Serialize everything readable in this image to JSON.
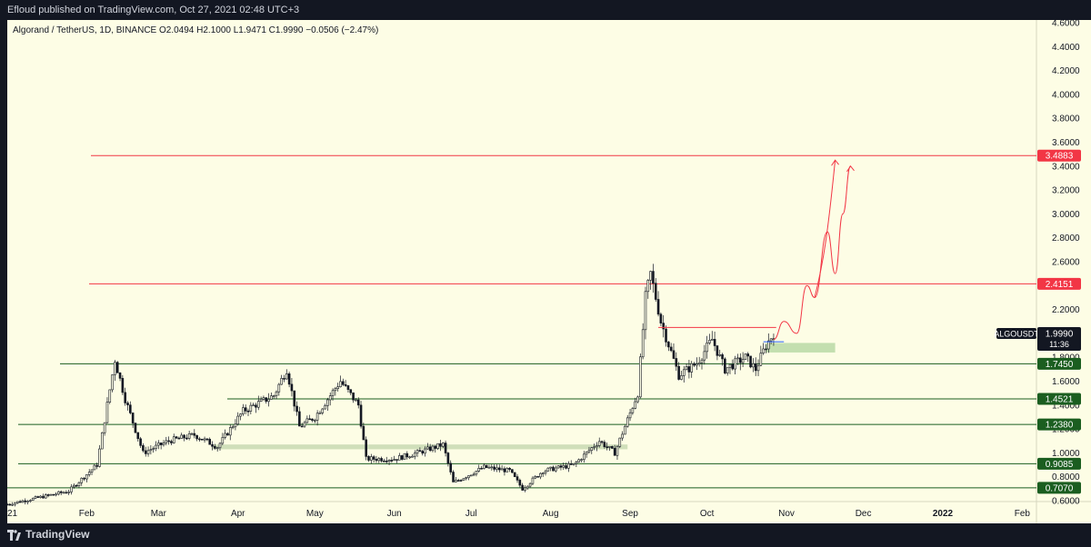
{
  "header": {
    "published": "Efloud published on TradingView.com, Oct 27, 2021 02:48 UTC+3"
  },
  "footer": {
    "brand": "TradingView"
  },
  "chart_data": {
    "type": "candlestick",
    "title": "Algorand / TetherUS, 1D, BINANCE",
    "ohlc_label": "O2.0494 H2.1000 L1.9471 C1.9990 −0.0506 (−2.47%)",
    "symbol": "ALGOUSDT",
    "last_price": "1.9990",
    "countdown": "11:36",
    "ylim": [
      0.55,
      4.7
    ],
    "y_ticks": [
      "0.6000",
      "0.8000",
      "1.0000",
      "1.2000",
      "1.4000",
      "1.6000",
      "1.8000",
      "2.0000",
      "2.2000",
      "2.4000",
      "2.6000",
      "2.8000",
      "3.0000",
      "3.2000",
      "3.4000",
      "3.6000",
      "3.8000",
      "4.0000",
      "4.2000",
      "4.4000",
      "4.6000"
    ],
    "x_ticks": [
      "21",
      "Feb",
      "Mar",
      "Apr",
      "May",
      "Jun",
      "Jul",
      "Aug",
      "Sep",
      "Oct",
      "Nov",
      "Dec",
      "2022",
      "Feb"
    ],
    "levels": [
      {
        "price": 3.4883,
        "label": "3.4883",
        "color": "#f23645"
      },
      {
        "price": 2.4151,
        "label": "2.4151",
        "color": "#f23645"
      },
      {
        "price": 1.745,
        "label": "1.7450",
        "color": "#1b5e20"
      },
      {
        "price": 1.4521,
        "label": "1.4521",
        "color": "#1b5e20"
      },
      {
        "price": 1.238,
        "label": "1.2380",
        "color": "#1b5e20"
      },
      {
        "price": 0.9085,
        "label": "0.9085",
        "color": "#1b5e20"
      },
      {
        "price": 0.707,
        "label": "0.7070",
        "color": "#1b5e20"
      }
    ],
    "zones": [
      {
        "from": "2021-03-22",
        "to": "2021-08-31",
        "low": 1.03,
        "high": 1.07,
        "color": "#c8d9b3"
      },
      {
        "from": "2021-10-24",
        "to": "2021-11-20",
        "low": 1.84,
        "high": 1.92,
        "color": "#b9d9a6"
      }
    ],
    "series": [
      {
        "name": "ALGOUSDT",
        "price_path": [
          {
            "date": "2021-01-01",
            "price": 0.57
          },
          {
            "date": "2021-01-25",
            "price": 0.68
          },
          {
            "date": "2021-02-05",
            "price": 0.9
          },
          {
            "date": "2021-02-12",
            "price": 1.78
          },
          {
            "date": "2021-02-16",
            "price": 1.45
          },
          {
            "date": "2021-02-23",
            "price": 1.0
          },
          {
            "date": "2021-03-05",
            "price": 1.1
          },
          {
            "date": "2021-03-15",
            "price": 1.15
          },
          {
            "date": "2021-03-24",
            "price": 1.05
          },
          {
            "date": "2021-04-03",
            "price": 1.35
          },
          {
            "date": "2021-04-15",
            "price": 1.48
          },
          {
            "date": "2021-04-20",
            "price": 1.7
          },
          {
            "date": "2021-04-25",
            "price": 1.22
          },
          {
            "date": "2021-05-01",
            "price": 1.3
          },
          {
            "date": "2021-05-11",
            "price": 1.6
          },
          {
            "date": "2021-05-18",
            "price": 1.4
          },
          {
            "date": "2021-05-21",
            "price": 0.95
          },
          {
            "date": "2021-06-01",
            "price": 0.95
          },
          {
            "date": "2021-06-10",
            "price": 1.0
          },
          {
            "date": "2021-06-20",
            "price": 1.07
          },
          {
            "date": "2021-06-24",
            "price": 0.75
          },
          {
            "date": "2021-07-06",
            "price": 0.88
          },
          {
            "date": "2021-07-16",
            "price": 0.85
          },
          {
            "date": "2021-07-21",
            "price": 0.7
          },
          {
            "date": "2021-07-29",
            "price": 0.85
          },
          {
            "date": "2021-08-10",
            "price": 0.9
          },
          {
            "date": "2021-08-20",
            "price": 1.1
          },
          {
            "date": "2021-08-26",
            "price": 1.0
          },
          {
            "date": "2021-09-04",
            "price": 1.5
          },
          {
            "date": "2021-09-07",
            "price": 2.3
          },
          {
            "date": "2021-09-09",
            "price": 2.5
          },
          {
            "date": "2021-09-13",
            "price": 2.1
          },
          {
            "date": "2021-09-20",
            "price": 1.65
          },
          {
            "date": "2021-09-27",
            "price": 1.75
          },
          {
            "date": "2021-10-03",
            "price": 1.95
          },
          {
            "date": "2021-10-08",
            "price": 1.7
          },
          {
            "date": "2021-10-16",
            "price": 1.8
          },
          {
            "date": "2021-10-20",
            "price": 1.7
          },
          {
            "date": "2021-10-24",
            "price": 1.9
          },
          {
            "date": "2021-10-27",
            "price": 2.0
          }
        ]
      }
    ],
    "projection": [
      {
        "date": "2021-10-27",
        "price": 1.95
      },
      {
        "date": "2021-10-31",
        "price": 2.1
      },
      {
        "date": "2021-11-05",
        "price": 2.0
      },
      {
        "date": "2021-11-09",
        "price": 2.4
      },
      {
        "date": "2021-11-12",
        "price": 2.3
      },
      {
        "date": "2021-11-17",
        "price": 2.85
      },
      {
        "date": "2021-11-20",
        "price": 2.5
      },
      {
        "date": "2021-11-23",
        "price": 3.0
      },
      {
        "date": "2021-11-26",
        "price": 3.4
      }
    ],
    "projection2": [
      {
        "date": "2021-11-12",
        "price": 2.3
      },
      {
        "date": "2021-11-20",
        "price": 3.45
      }
    ]
  }
}
